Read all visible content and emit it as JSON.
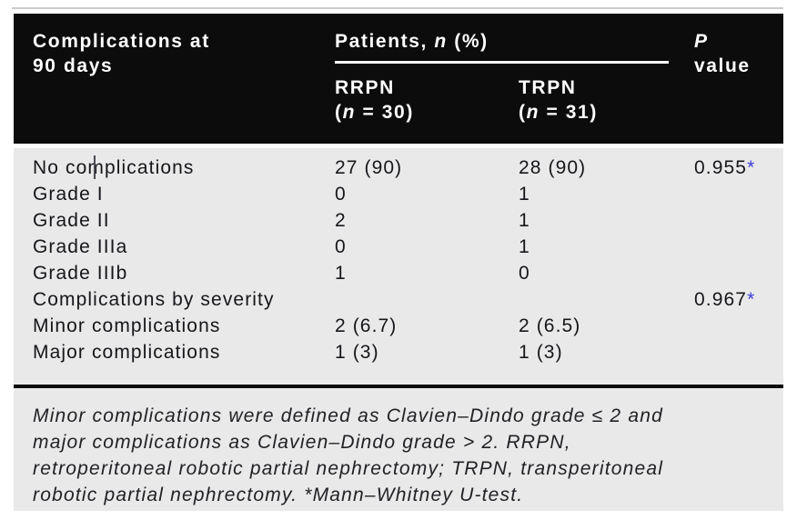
{
  "table": {
    "header": {
      "col1": {
        "line1": "Complications at",
        "line2": "90 days"
      },
      "patients_group": {
        "title_prefix": "Patients, ",
        "title_n": "n",
        "title_suffix": " (%)",
        "subcolumns": [
          {
            "name": "RRPN",
            "paren_open": "(",
            "n_italic": "n",
            "paren_rest": " = 30)"
          },
          {
            "name": "TRPN",
            "paren_open": "(",
            "n_italic": "n",
            "paren_rest": " = 31)"
          }
        ]
      },
      "p_col": {
        "line1": "P",
        "line2": "value"
      }
    },
    "rows": [
      {
        "label": "No complications",
        "rrpn": "27 (90)",
        "trpn": "28 (90)",
        "p_value": "0.955",
        "p_marker": "*"
      },
      {
        "label": "Grade I",
        "rrpn": "0",
        "trpn": "1",
        "p_value": "",
        "p_marker": ""
      },
      {
        "label": "Grade II",
        "rrpn": "2",
        "trpn": "1",
        "p_value": "",
        "p_marker": ""
      },
      {
        "label": "Grade IIIa",
        "rrpn": "0",
        "trpn": "1",
        "p_value": "",
        "p_marker": ""
      },
      {
        "label": "Grade IIIb",
        "rrpn": "1",
        "trpn": "0",
        "p_value": "",
        "p_marker": ""
      },
      {
        "label": "Complications by severity",
        "rrpn": "",
        "trpn": "",
        "p_value": "0.967",
        "p_marker": "*"
      },
      {
        "label": "Minor complications",
        "rrpn": "2 (6.7)",
        "trpn": "2 (6.5)",
        "p_value": "",
        "p_marker": ""
      },
      {
        "label": "Major complications",
        "rrpn": "1 (3)",
        "trpn": "1 (3)",
        "p_value": "",
        "p_marker": ""
      }
    ],
    "footnote": {
      "line1": "Minor complications were defined as Clavien–Dindo grade ≤ 2 and",
      "line2": "major complications as Clavien–Dindo grade > 2. RRPN,",
      "line3": "retroperitoneal robotic partial nephrectomy; TRPN, transperitoneal",
      "line4": "robotic partial nephrectomy. *Mann–Whitney U-test."
    },
    "colors": {
      "header_bg": "#0c0c0c",
      "body_bg": "#e9e9e9",
      "p_marker_blue": "#3e3ed8"
    }
  }
}
